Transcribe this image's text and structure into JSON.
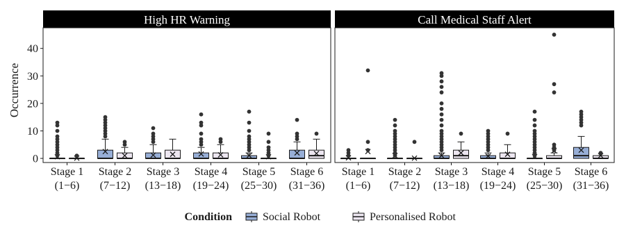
{
  "chart_data": {
    "type": "boxplot",
    "ylabel": "Occurrence",
    "xlabel": "",
    "ylim": [
      -1.5,
      47.5
    ],
    "yticks": [
      0,
      10,
      20,
      30,
      40
    ],
    "categories": [
      {
        "line1": "Stage 1",
        "line2": "(1−6)"
      },
      {
        "line1": "Stage 2",
        "line2": "(7−12)"
      },
      {
        "line1": "Stage 3",
        "line2": "(13−18)"
      },
      {
        "line1": "Stage 4",
        "line2": "(19−24)"
      },
      {
        "line1": "Stage 5",
        "line2": "(25−30)"
      },
      {
        "line1": "Stage 6",
        "line2": "(31−36)"
      }
    ],
    "legend": {
      "title": "Condition",
      "position": "bottom",
      "items": [
        {
          "label": "Social Robot",
          "color": "#97aed6"
        },
        {
          "label": "Personalised Robot",
          "color": "#ece6f0"
        }
      ]
    },
    "panels": [
      {
        "title": "High HR Warning",
        "series": [
          {
            "name": "Social Robot",
            "boxes": [
              {
                "q1": 0,
                "median": 0,
                "q3": 0,
                "lo": 0,
                "hi": 0,
                "mean": 0.6,
                "outliers": [
                  1,
                  2,
                  3,
                  4,
                  5,
                  6,
                  7,
                  8,
                  10,
                  12,
                  13
                ]
              },
              {
                "q1": 0,
                "median": 0,
                "q3": 3,
                "lo": 0,
                "hi": 7,
                "mean": 2.5,
                "outliers": [
                  8,
                  9,
                  10,
                  11,
                  12,
                  13,
                  14,
                  15
                ]
              },
              {
                "q1": 0,
                "median": 0,
                "q3": 2,
                "lo": 0,
                "hi": 5,
                "mean": 1.2,
                "outliers": [
                  6,
                  7,
                  8,
                  9,
                  11
                ]
              },
              {
                "q1": 0,
                "median": 0,
                "q3": 2,
                "lo": 0,
                "hi": 4,
                "mean": 1.6,
                "outliers": [
                  5,
                  6,
                  7,
                  9,
                  12,
                  13,
                  16
                ]
              },
              {
                "q1": 0,
                "median": 0,
                "q3": 1,
                "lo": 0,
                "hi": 2,
                "mean": 1.0,
                "outliers": [
                  3,
                  4,
                  5,
                  6,
                  7,
                  8,
                  10,
                  13,
                  17
                ]
              },
              {
                "q1": 0,
                "median": 0,
                "q3": 3,
                "lo": 0,
                "hi": 6,
                "mean": 2.0,
                "outliers": [
                  7,
                  8,
                  9,
                  14
                ]
              }
            ]
          },
          {
            "name": "Personalised Robot",
            "boxes": [
              {
                "q1": 0,
                "median": 0,
                "q3": 0,
                "lo": 0,
                "hi": 0,
                "mean": 0.1,
                "outliers": [
                  1
                ]
              },
              {
                "q1": 0,
                "median": 0,
                "q3": 2,
                "lo": 0,
                "hi": 4,
                "mean": 1.0,
                "outliers": [
                  5,
                  6
                ]
              },
              {
                "q1": 0,
                "median": 0,
                "q3": 3,
                "lo": 0,
                "hi": 7,
                "mean": 1.5,
                "outliers": []
              },
              {
                "q1": 0,
                "median": 0,
                "q3": 2,
                "lo": 0,
                "hi": 5,
                "mean": 1.3,
                "outliers": [
                  6,
                  7
                ]
              },
              {
                "q1": 0,
                "median": 0,
                "q3": 0,
                "lo": 0,
                "hi": 0,
                "mean": 0.6,
                "outliers": [
                  1,
                  2,
                  3,
                  4,
                  6,
                  9
                ]
              },
              {
                "q1": 0,
                "median": 1,
                "q3": 3,
                "lo": 0,
                "hi": 7,
                "mean": 1.8,
                "outliers": [
                  9
                ]
              }
            ]
          }
        ]
      },
      {
        "title": "Call Medical Staff Alert",
        "series": [
          {
            "name": "Social Robot",
            "boxes": [
              {
                "q1": 0,
                "median": 0,
                "q3": 0,
                "lo": 0,
                "hi": 0,
                "mean": 0.2,
                "outliers": [
                  1,
                  2,
                  3
                ]
              },
              {
                "q1": 0,
                "median": 0,
                "q3": 0,
                "lo": 0,
                "hi": 0,
                "mean": 1.0,
                "outliers": [
                  1,
                  2,
                  3,
                  4,
                  5,
                  6,
                  7,
                  8,
                  9,
                  10,
                  12,
                  14
                ]
              },
              {
                "q1": 0,
                "median": 0,
                "q3": 1,
                "lo": 0,
                "hi": 2,
                "mean": 1.0,
                "outliers": [
                  3,
                  4,
                  5,
                  6,
                  7,
                  8,
                  9,
                  10,
                  12,
                  14,
                  16,
                  18,
                  20,
                  24,
                  26,
                  28,
                  30,
                  31
                ]
              },
              {
                "q1": 0,
                "median": 0,
                "q3": 1,
                "lo": 0,
                "hi": 2,
                "mean": 0.8,
                "outliers": [
                  3,
                  4,
                  5,
                  6,
                  7,
                  8,
                  9,
                  10
                ]
              },
              {
                "q1": 0,
                "median": 0,
                "q3": 0,
                "lo": 0,
                "hi": 0,
                "mean": 0.7,
                "outliers": [
                  1,
                  2,
                  3,
                  4,
                  5,
                  6,
                  7,
                  8,
                  9,
                  10,
                  12,
                  14,
                  17
                ]
              },
              {
                "q1": 0,
                "median": 1,
                "q3": 4,
                "lo": 0,
                "hi": 8,
                "mean": 3.0,
                "outliers": [
                  12,
                  13,
                  14,
                  15,
                  16,
                  17
                ]
              }
            ]
          },
          {
            "name": "Personalised Robot",
            "boxes": [
              {
                "q1": 0,
                "median": 0,
                "q3": 0,
                "lo": 0,
                "hi": 0,
                "mean": 2.5,
                "outliers": [
                  3,
                  6,
                  32
                ]
              },
              {
                "q1": 0,
                "median": 0,
                "q3": 0,
                "lo": 0,
                "hi": 0,
                "mean": 0.1,
                "outliers": [
                  6
                ]
              },
              {
                "q1": 0,
                "median": 1,
                "q3": 3,
                "lo": 0,
                "hi": 6,
                "mean": 2.0,
                "outliers": [
                  9
                ]
              },
              {
                "q1": 0,
                "median": 0,
                "q3": 2,
                "lo": 0,
                "hi": 5,
                "mean": 1.5,
                "outliers": [
                  9
                ]
              },
              {
                "q1": 0,
                "median": 0,
                "q3": 1,
                "lo": 0,
                "hi": 2,
                "mean": 2.8,
                "outliers": [
                  3,
                  4,
                  5,
                  24,
                  27,
                  45
                ]
              },
              {
                "q1": 0,
                "median": 0,
                "q3": 1,
                "lo": 0,
                "hi": 1,
                "mean": 1.0,
                "outliers": [
                  2
                ]
              }
            ]
          }
        ]
      }
    ]
  }
}
